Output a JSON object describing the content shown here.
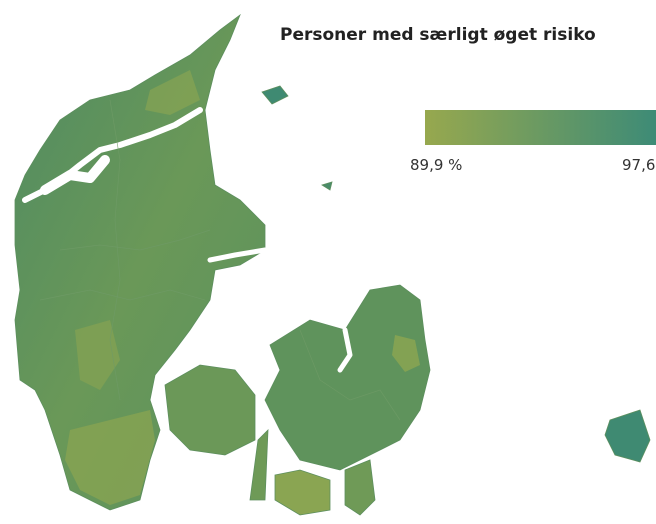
{
  "title": "Personer med særligt øget risiko",
  "legend": {
    "min_label": "89,9 %",
    "max_label": "97,6",
    "colors": [
      "#97a84e",
      "#3a8a78"
    ]
  }
}
